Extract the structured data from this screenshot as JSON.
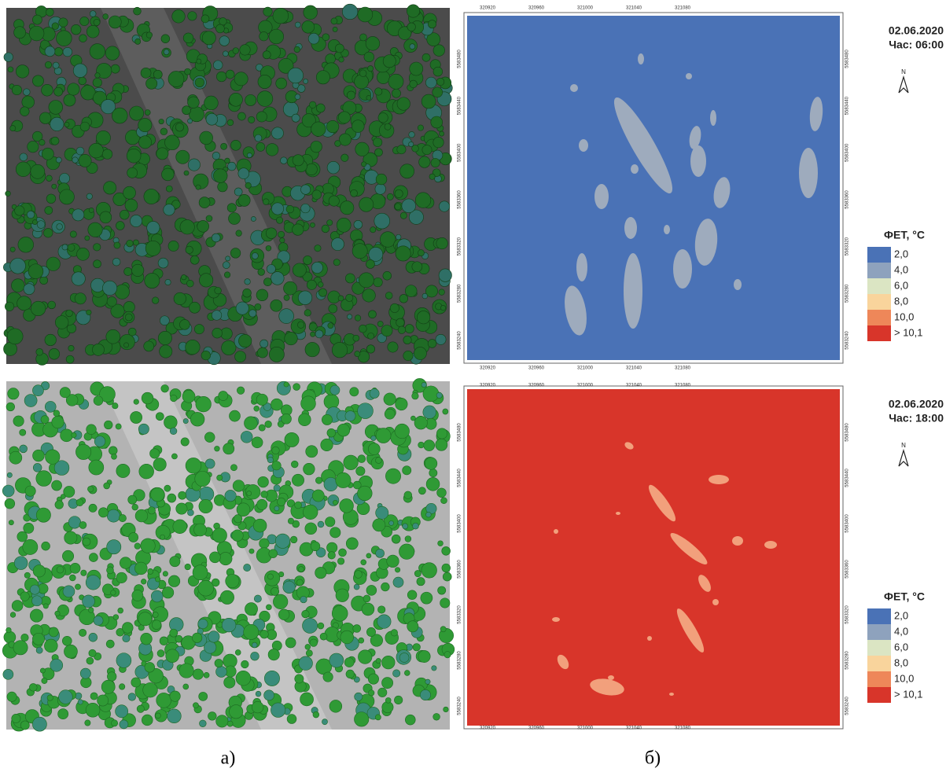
{
  "panels": [
    {
      "date": "02.06.2020",
      "hour": "Час: 06:00",
      "north": "N",
      "map_color": "#4a72b6",
      "patch_color": "#9eabbd"
    },
    {
      "date": "02.06.2020",
      "hour": "Час: 18:00",
      "north": "N",
      "map_color": "#d8352a",
      "patch_color": "#f2a07c"
    }
  ],
  "map_axes": {
    "x_ticks": [
      320920,
      320960,
      321000,
      321040,
      321080
    ],
    "y_ticks": [
      5583480,
      5583440,
      5583400,
      5583360,
      5583320,
      5583280,
      5583240
    ]
  },
  "legend": {
    "title": "ФЕТ, °C",
    "items": [
      {
        "label": "2,0",
        "color": "#4a72b6"
      },
      {
        "label": "4,0",
        "color": "#8ea2bd"
      },
      {
        "label": "6,0",
        "color": "#dbe5c3"
      },
      {
        "label": "8,0",
        "color": "#f9d49c"
      },
      {
        "label": "10,0",
        "color": "#ee8759"
      },
      {
        "label": "> 10,1",
        "color": "#d8352a"
      }
    ]
  },
  "captions": [
    "а)",
    "б)"
  ]
}
